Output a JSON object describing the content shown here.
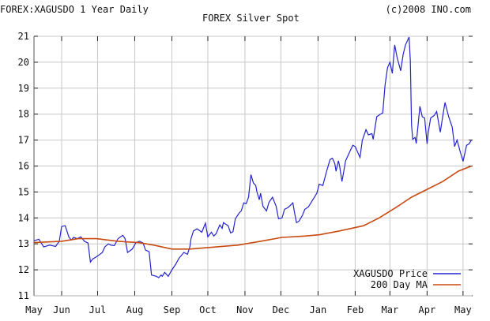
{
  "header": {
    "symbol_title": "FOREX:XAGUSDO 1 Year Daily",
    "copyright": "(c)2008 INO.com"
  },
  "chart_data": {
    "type": "line",
    "title": "FOREX Silver Spot",
    "xlabel": "",
    "ylabel": "",
    "ylim": [
      11,
      21
    ],
    "xlim": [
      "2007-05-09",
      "2008-05-08"
    ],
    "grid": true,
    "legend_placement": "bottom-right",
    "y_ticks": [
      "11",
      "12",
      "13",
      "14",
      "15",
      "16",
      "17",
      "18",
      "19",
      "20",
      "21"
    ],
    "x_ticks": [
      {
        "label": "May",
        "date": "2007-05-09"
      },
      {
        "label": "Jun",
        "date": "2007-06-01"
      },
      {
        "label": "Jul",
        "date": "2007-07-01"
      },
      {
        "label": "Aug",
        "date": "2007-08-01"
      },
      {
        "label": "Sep",
        "date": "2007-09-01"
      },
      {
        "label": "Oct",
        "date": "2007-10-01"
      },
      {
        "label": "Nov",
        "date": "2007-11-01"
      },
      {
        "label": "Dec",
        "date": "2007-12-01"
      },
      {
        "label": "Jan",
        "date": "2008-01-01"
      },
      {
        "label": "Feb",
        "date": "2008-02-01"
      },
      {
        "label": "Mar",
        "date": "2008-03-01"
      },
      {
        "label": "Apr",
        "date": "2008-04-01"
      },
      {
        "label": "May",
        "date": "2008-05-01"
      }
    ],
    "series": [
      {
        "name": "XAGUSDO Price",
        "color": "#2323d0",
        "x": [
          "2007-05-09",
          "2007-05-13",
          "2007-05-17",
          "2007-05-22",
          "2007-05-27",
          "2007-05-30",
          "2007-06-01",
          "2007-06-04",
          "2007-06-07",
          "2007-06-09",
          "2007-06-11",
          "2007-06-14",
          "2007-06-17",
          "2007-06-20",
          "2007-06-23",
          "2007-06-25",
          "2007-06-27",
          "2007-06-30",
          "2007-07-05",
          "2007-07-07",
          "2007-07-10",
          "2007-07-12",
          "2007-07-15",
          "2007-07-18",
          "2007-07-22",
          "2007-07-24",
          "2007-07-26",
          "2007-07-30",
          "2007-08-02",
          "2007-08-05",
          "2007-08-08",
          "2007-08-10",
          "2007-08-13",
          "2007-08-15",
          "2007-08-19",
          "2007-08-21",
          "2007-08-23",
          "2007-08-24",
          "2007-08-26",
          "2007-08-29",
          "2007-09-01",
          "2007-09-04",
          "2007-09-07",
          "2007-09-11",
          "2007-09-14",
          "2007-09-16",
          "2007-09-17",
          "2007-09-19",
          "2007-09-22",
          "2007-09-26",
          "2007-09-29",
          "2007-10-01",
          "2007-10-04",
          "2007-10-06",
          "2007-10-08",
          "2007-10-11",
          "2007-10-13",
          "2007-10-14",
          "2007-10-18",
          "2007-10-20",
          "2007-10-22",
          "2007-10-24",
          "2007-10-27",
          "2007-10-29",
          "2007-10-31",
          "2007-11-02",
          "2007-11-04",
          "2007-11-06",
          "2007-11-08",
          "2007-11-10",
          "2007-11-11",
          "2007-11-13",
          "2007-11-14",
          "2007-11-16",
          "2007-11-19",
          "2007-11-21",
          "2007-11-24",
          "2007-11-27",
          "2007-11-29",
          "2007-12-02",
          "2007-12-04",
          "2007-12-07",
          "2007-12-11",
          "2007-12-12",
          "2007-12-14",
          "2007-12-16",
          "2007-12-19",
          "2007-12-21",
          "2007-12-24",
          "2007-12-28",
          "2007-12-31",
          "2008-01-02",
          "2008-01-05",
          "2008-01-08",
          "2008-01-11",
          "2008-01-13",
          "2008-01-15",
          "2008-01-16",
          "2008-01-18",
          "2008-01-19",
          "2008-01-21",
          "2008-01-24",
          "2008-01-27",
          "2008-01-30",
          "2008-02-01",
          "2008-02-05",
          "2008-02-07",
          "2008-02-10",
          "2008-02-12",
          "2008-02-15",
          "2008-02-16",
          "2008-02-19",
          "2008-02-22",
          "2008-02-24",
          "2008-02-26",
          "2008-02-28",
          "2008-03-01",
          "2008-03-03",
          "2008-03-05",
          "2008-03-07",
          "2008-03-10",
          "2008-03-12",
          "2008-03-14",
          "2008-03-17",
          "2008-03-18",
          "2008-03-19",
          "2008-03-20",
          "2008-03-22",
          "2008-03-23",
          "2008-03-26",
          "2008-03-28",
          "2008-03-30",
          "2008-04-01",
          "2008-04-02",
          "2008-04-04",
          "2008-04-07",
          "2008-04-09",
          "2008-04-12",
          "2008-04-14",
          "2008-04-16",
          "2008-04-19",
          "2008-04-22",
          "2008-04-24",
          "2008-04-26",
          "2008-04-29",
          "2008-05-01",
          "2008-05-04",
          "2008-05-06",
          "2008-05-08"
        ],
        "values": [
          13.12,
          13.18,
          12.88,
          12.95,
          12.9,
          13.1,
          13.67,
          13.7,
          13.27,
          13.15,
          13.25,
          13.2,
          13.27,
          13.1,
          13.03,
          12.3,
          12.42,
          12.5,
          12.67,
          12.88,
          13.0,
          12.95,
          12.93,
          13.2,
          13.33,
          13.2,
          12.67,
          12.8,
          13.05,
          13.1,
          13.03,
          12.76,
          12.7,
          11.8,
          11.75,
          11.7,
          11.8,
          11.75,
          11.9,
          11.75,
          12.0,
          12.2,
          12.45,
          12.67,
          12.6,
          12.88,
          13.2,
          13.5,
          13.58,
          13.45,
          13.8,
          13.27,
          13.45,
          13.3,
          13.4,
          13.73,
          13.6,
          13.82,
          13.7,
          13.42,
          13.47,
          13.97,
          14.18,
          14.28,
          14.58,
          14.55,
          14.8,
          15.67,
          15.35,
          15.25,
          15.0,
          14.7,
          14.95,
          14.45,
          14.27,
          14.6,
          14.8,
          14.45,
          13.97,
          14.0,
          14.33,
          14.4,
          14.58,
          14.3,
          13.82,
          13.87,
          14.1,
          14.33,
          14.43,
          14.73,
          14.95,
          15.3,
          15.25,
          15.77,
          16.25,
          16.3,
          16.1,
          15.8,
          16.2,
          16.0,
          15.4,
          16.2,
          16.5,
          16.8,
          16.75,
          16.33,
          17.0,
          17.4,
          17.2,
          17.25,
          17.03,
          17.9,
          18.0,
          18.05,
          19.15,
          19.8,
          20.0,
          19.57,
          20.67,
          20.18,
          19.67,
          20.3,
          20.67,
          20.97,
          20.06,
          17.6,
          17.03,
          17.1,
          16.87,
          18.3,
          17.9,
          17.85,
          16.85,
          17.3,
          17.85,
          17.95,
          18.1,
          17.3,
          17.9,
          18.45,
          17.9,
          17.5,
          16.75,
          17.0,
          16.5,
          16.18,
          16.8,
          16.85,
          17.0
        ]
      },
      {
        "name": "200 Day MA",
        "color": "#c84a10",
        "x": [
          "2007-05-09",
          "2007-06-01",
          "2007-06-15",
          "2007-06-30",
          "2007-07-18",
          "2007-08-04",
          "2007-08-17",
          "2007-09-01",
          "2007-09-16",
          "2007-09-30",
          "2007-10-26",
          "2007-11-14",
          "2007-12-02",
          "2007-12-21",
          "2008-01-02",
          "2008-01-19",
          "2008-02-08",
          "2008-02-21",
          "2008-03-06",
          "2008-03-19",
          "2008-04-01",
          "2008-04-14",
          "2008-04-27",
          "2008-05-08"
        ],
        "values": [
          13.05,
          13.1,
          13.2,
          13.2,
          13.1,
          13.05,
          12.95,
          12.8,
          12.8,
          12.85,
          12.95,
          13.1,
          13.25,
          13.3,
          13.35,
          13.5,
          13.7,
          14.0,
          14.4,
          14.8,
          15.1,
          15.4,
          15.8,
          16.0
        ]
      }
    ]
  }
}
